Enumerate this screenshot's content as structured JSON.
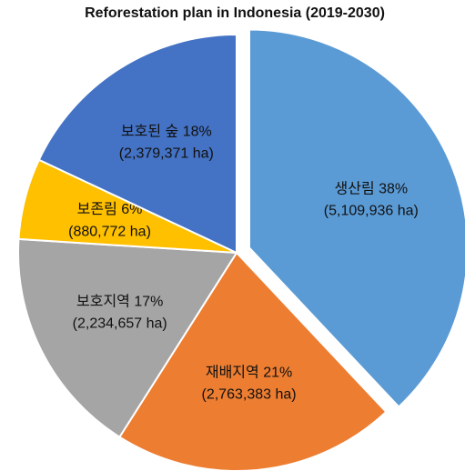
{
  "chart_data": {
    "type": "pie",
    "title": "Reforestation plan in Indonesia (2019-2030)",
    "categories": [
      "생산림",
      "재배지역",
      "보호지역",
      "보존림",
      "보호된 숲"
    ],
    "values": [
      38,
      21,
      17,
      6,
      18
    ],
    "value_labels": [
      "38%",
      "21%",
      "17%",
      "6%",
      "18%"
    ],
    "areas": [
      5109936,
      2763383,
      2234657,
      880772,
      2379371
    ],
    "area_labels": [
      "(5,109,936 ha)",
      "(2,763,383 ha)",
      "(2,234,657 ha)",
      "(880,772 ha)",
      "(2,379,371 ha)"
    ],
    "colors": [
      "#5b9bd5",
      "#ed7d31",
      "#a5a5a5",
      "#ffc000",
      "#4472c4"
    ],
    "exploded": [
      true,
      false,
      false,
      false,
      false
    ]
  }
}
